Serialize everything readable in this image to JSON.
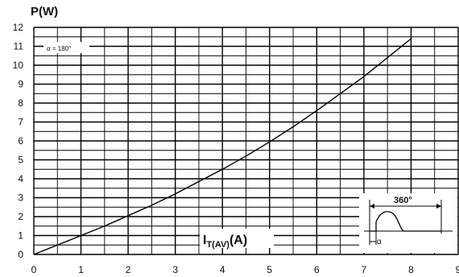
{
  "chart_data": {
    "type": "line",
    "ylabel": "P(W)",
    "xlabel_main": "I",
    "xlabel_sub": "T(AV)",
    "xlabel_unit": "(A)",
    "xlim": [
      0,
      9
    ],
    "ylim": [
      0,
      12
    ],
    "x_ticks": [
      "0",
      "1",
      "2",
      "3",
      "4",
      "5",
      "6",
      "7",
      "8",
      "9"
    ],
    "y_ticks": [
      "0",
      "1",
      "2",
      "3",
      "4",
      "5",
      "6",
      "7",
      "8",
      "9",
      "10",
      "11",
      "12"
    ],
    "grid": true,
    "annotation": "α = 180°",
    "series": [
      {
        "x": [
          0,
          0.5,
          1,
          1.5,
          2,
          2.5,
          3,
          3.5,
          4,
          4.5,
          5,
          5.5,
          6,
          6.5,
          7,
          7.5,
          8
        ],
        "values": [
          0,
          0.5,
          1.0,
          1.5,
          2.05,
          2.6,
          3.2,
          3.85,
          4.5,
          5.2,
          5.95,
          6.75,
          7.6,
          8.5,
          9.4,
          10.4,
          11.4
        ]
      }
    ],
    "inset": {
      "angle_label": "360°",
      "alpha_label": "α"
    }
  }
}
